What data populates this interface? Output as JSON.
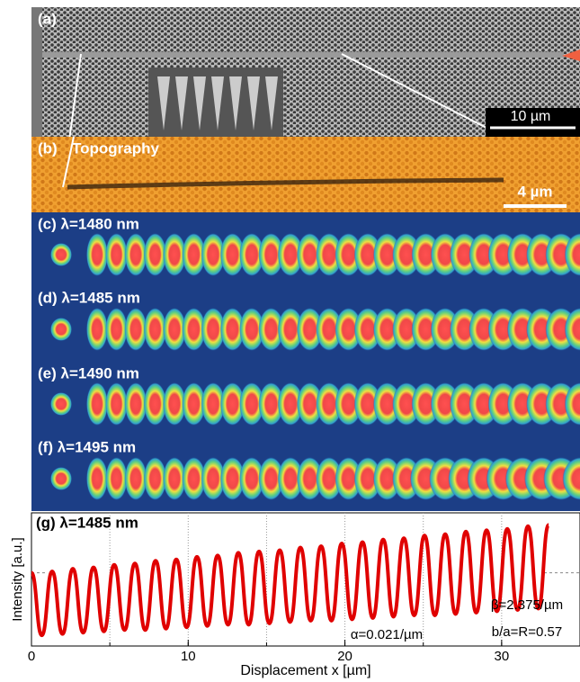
{
  "panels": {
    "a": {
      "label": "(a)",
      "scale_bar": "10 µm"
    },
    "b": {
      "label": "(b)",
      "title": "Topography",
      "scale_bar": "4 µm"
    },
    "maps": [
      "(c) λ=1480 nm",
      "(d) λ=1485 nm",
      "(e) λ=1490 nm",
      "(f) λ=1495 nm"
    ]
  },
  "chart_data": {
    "type": "line",
    "title": "(g) λ=1485 nm",
    "x_label": "Displacement x [µm]",
    "y_label": "Intensity [a.u.]",
    "annotations": [
      "α=0.021/µm",
      "β=2.375/µm",
      "b/a=R=0.57"
    ],
    "xlim": [
      0,
      35
    ],
    "xticks": [
      0,
      10,
      20,
      30
    ],
    "xgrid": [
      5,
      10,
      15,
      20,
      25,
      30
    ],
    "ylim": [
      0,
      1
    ],
    "series": [
      {
        "color": "#e00000",
        "x": [
          0,
          0.66,
          1.32,
          1.98,
          2.64,
          3.3,
          3.96,
          4.62,
          5.28,
          5.94,
          6.6,
          7.26,
          7.92,
          8.58,
          9.24,
          9.9,
          10.56,
          11.22,
          11.88,
          12.54,
          13.2,
          13.86,
          14.52,
          15.18,
          15.84,
          16.5,
          17.16,
          17.82,
          18.48,
          19.14,
          19.8,
          20.46,
          21.12,
          21.78,
          22.44,
          23.1,
          23.76,
          24.42,
          25.08,
          25.74,
          26.4,
          27.06,
          27.72,
          28.38,
          29.04,
          29.7,
          30.36,
          31.02,
          31.68,
          32.34,
          33.0
        ],
        "values": [
          0.55,
          0.08,
          0.56,
          0.09,
          0.58,
          0.1,
          0.59,
          0.11,
          0.61,
          0.12,
          0.62,
          0.12,
          0.64,
          0.13,
          0.65,
          0.14,
          0.67,
          0.15,
          0.68,
          0.16,
          0.7,
          0.16,
          0.71,
          0.17,
          0.72,
          0.18,
          0.74,
          0.19,
          0.75,
          0.19,
          0.77,
          0.2,
          0.78,
          0.21,
          0.8,
          0.22,
          0.81,
          0.23,
          0.83,
          0.23,
          0.84,
          0.24,
          0.86,
          0.25,
          0.87,
          0.26,
          0.88,
          0.27,
          0.9,
          0.28,
          0.91
        ]
      }
    ]
  }
}
